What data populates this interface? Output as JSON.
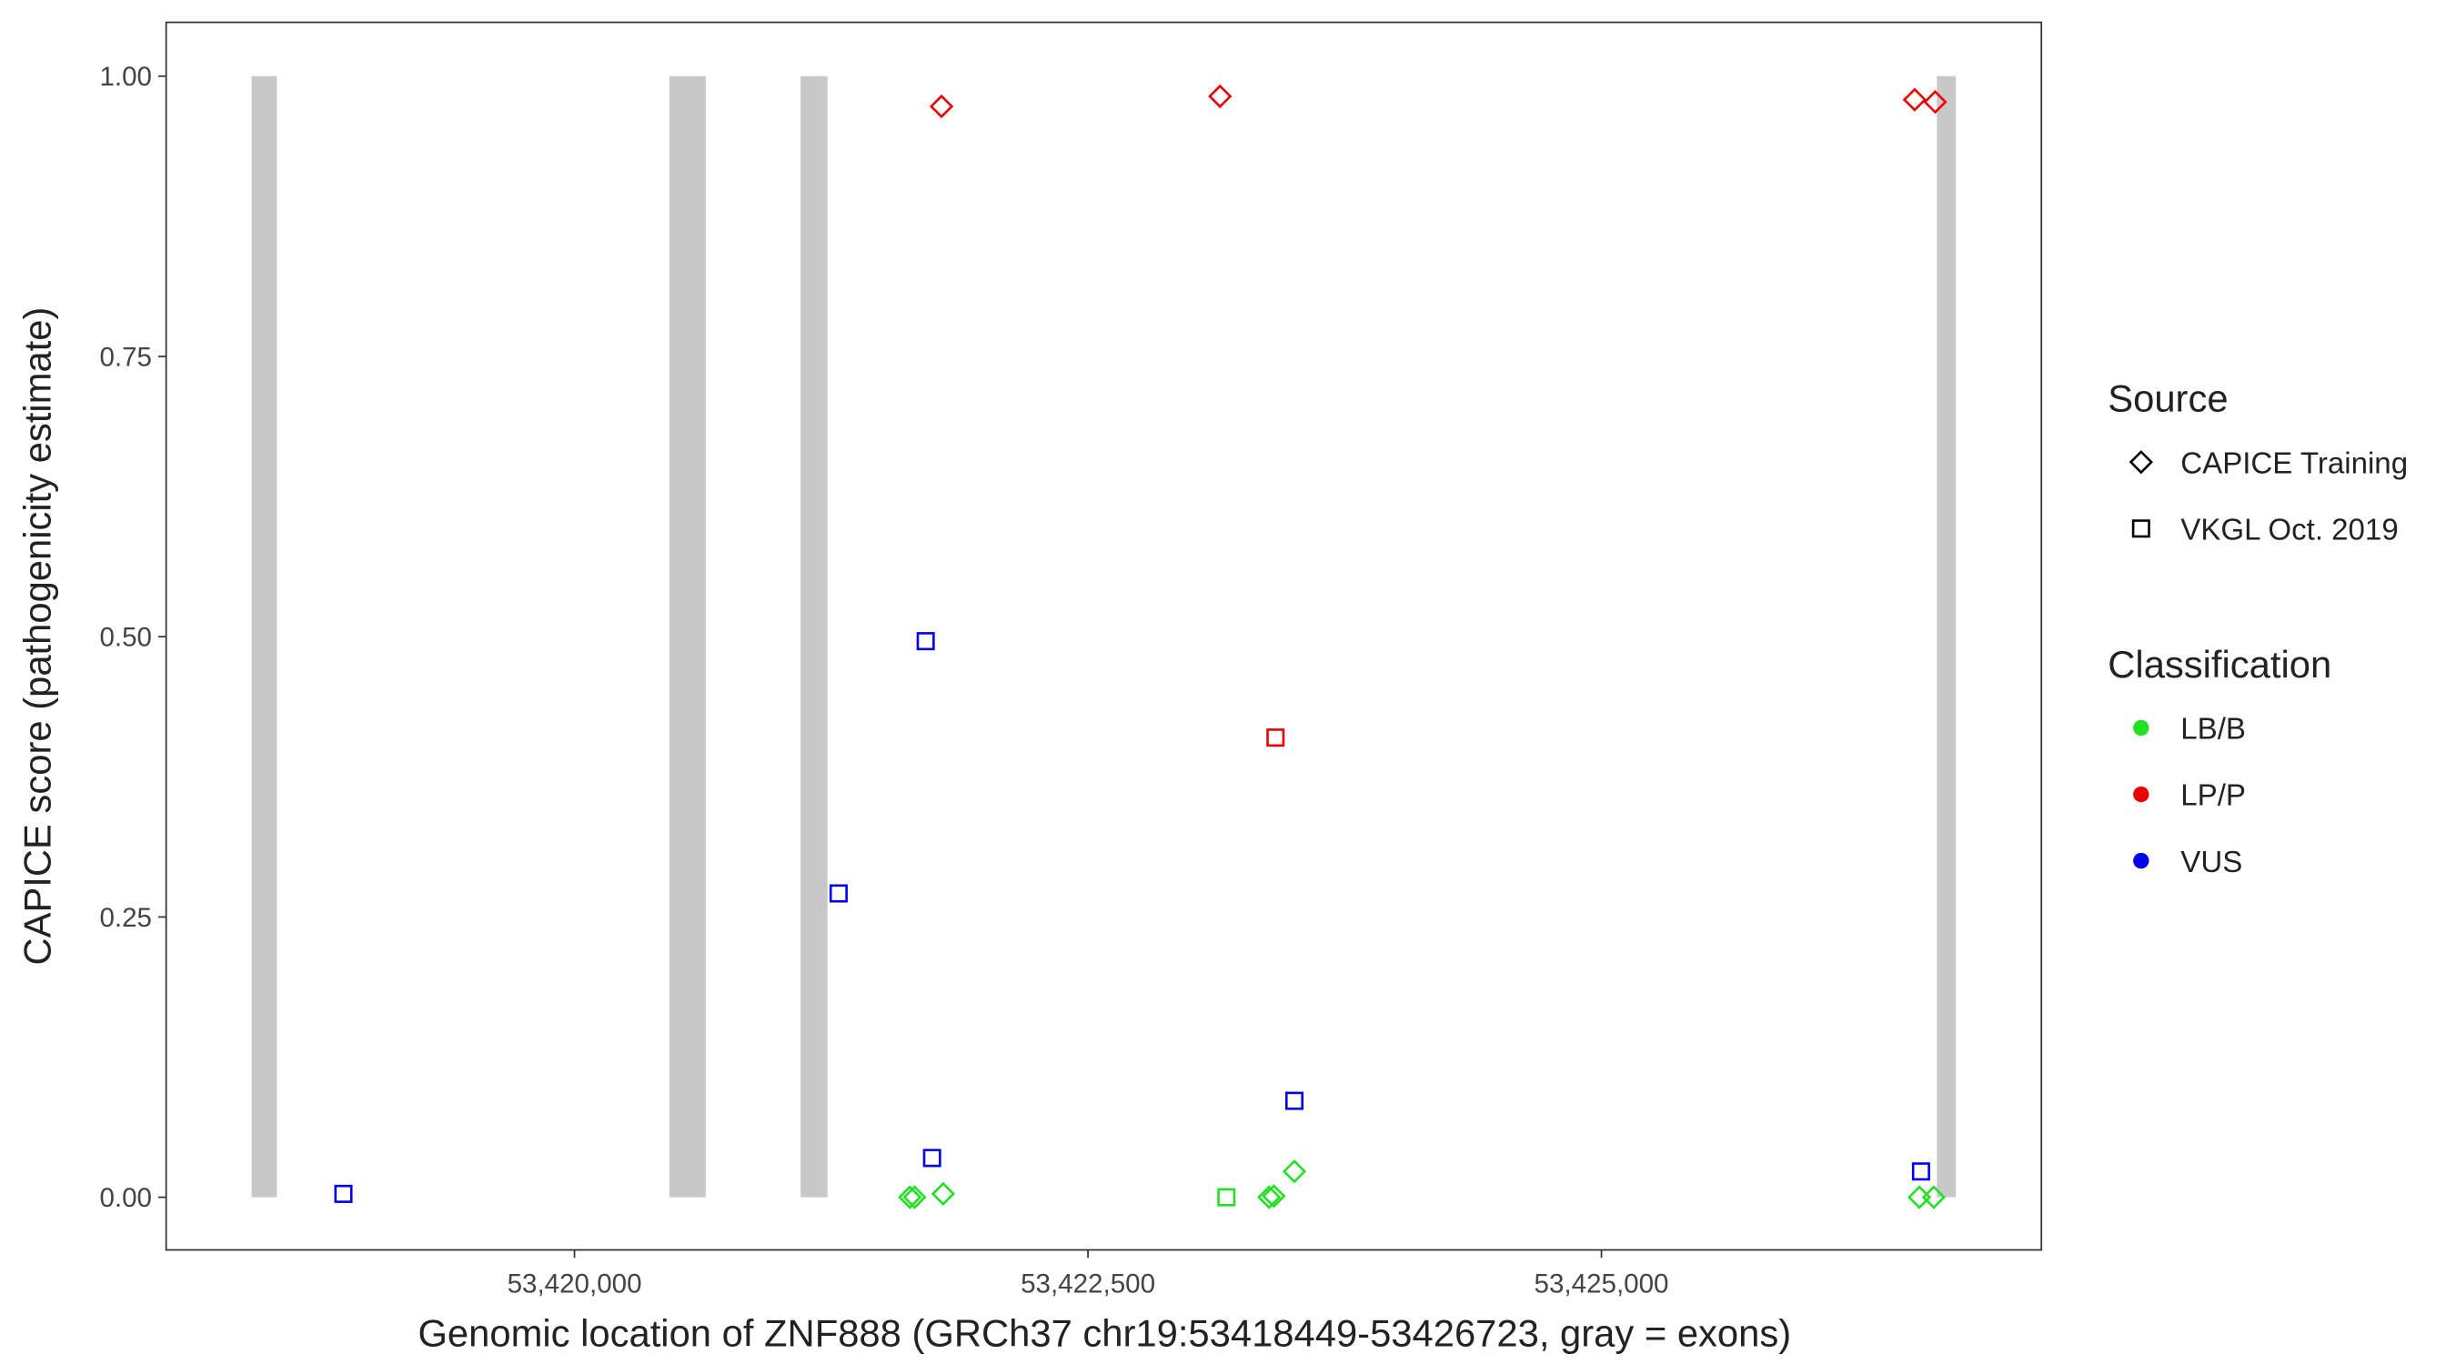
{
  "chart_data": {
    "type": "scatter",
    "x_label": "Genomic location of ZNF888 (GRCh37 chr19:53418449-53426723, gray = exons)",
    "y_label": "CAPICE score (pathogenicity estimate)",
    "xlim": [
      53418012,
      53427142
    ],
    "ylim": [
      -0.047,
      1.048
    ],
    "xticks": [
      {
        "value": 53420000,
        "label": "53,420,000"
      },
      {
        "value": 53422500,
        "label": "53,422,500"
      },
      {
        "value": 53425000,
        "label": "53,425,000"
      }
    ],
    "yticks": [
      {
        "value": 0,
        "label": "0.00"
      },
      {
        "value": 0.25,
        "label": "0.25"
      },
      {
        "value": 0.5,
        "label": "0.50"
      },
      {
        "value": 0.75,
        "label": "0.75"
      },
      {
        "value": 1,
        "label": "1.00"
      }
    ],
    "exon_color": "#c8c8c8",
    "exons": {
      "starts": [
        53418428,
        53420462,
        53421101,
        53426633
      ],
      "ends": [
        53418551,
        53420639,
        53421232,
        53426725
      ]
    },
    "legends": [
      {
        "title": "Source",
        "entries": [
          {
            "label": "CAPICE Training",
            "shape": "diamond"
          },
          {
            "label": "VKGL Oct. 2019",
            "shape": "square"
          }
        ]
      },
      {
        "title": "Classification",
        "entries": [
          {
            "label": "LB/B",
            "color": "#22e022"
          },
          {
            "label": "LP/P",
            "color": "#ee0000"
          },
          {
            "label": "VUS",
            "color": "#0000ee"
          }
        ]
      }
    ],
    "points": {
      "x": [
        53421787,
        53423143,
        53426525,
        53426625,
        53418875,
        53421710,
        53421286,
        53421741,
        53423505,
        53426556,
        53423413,
        53421633,
        53421656,
        53421795,
        53423382,
        53423405,
        53423505,
        53426548,
        53426618,
        53423174
      ],
      "y": [
        0.973,
        0.982,
        0.979,
        0.977,
        0.003,
        0.496,
        0.271,
        0.035,
        0.086,
        0.023,
        0.41,
        0,
        0,
        0.003,
        0,
        0.001,
        0.023,
        0,
        0,
        0
      ],
      "source": [
        "CAPICE Training",
        "CAPICE Training",
        "CAPICE Training",
        "CAPICE Training",
        "VKGL Oct. 2019",
        "VKGL Oct. 2019",
        "VKGL Oct. 2019",
        "VKGL Oct. 2019",
        "VKGL Oct. 2019",
        "VKGL Oct. 2019",
        "VKGL Oct. 2019",
        "CAPICE Training",
        "CAPICE Training",
        "CAPICE Training",
        "CAPICE Training",
        "CAPICE Training",
        "CAPICE Training",
        "CAPICE Training",
        "CAPICE Training",
        "VKGL Oct. 2019"
      ],
      "classification": [
        "LP/P",
        "LP/P",
        "LP/P",
        "LP/P",
        "VUS",
        "VUS",
        "VUS",
        "VUS",
        "VUS",
        "VUS",
        "LP/P",
        "LB/B",
        "LB/B",
        "LB/B",
        "LB/B",
        "LB/B",
        "LB/B",
        "LB/B",
        "LB/B",
        "LB/B"
      ]
    }
  }
}
